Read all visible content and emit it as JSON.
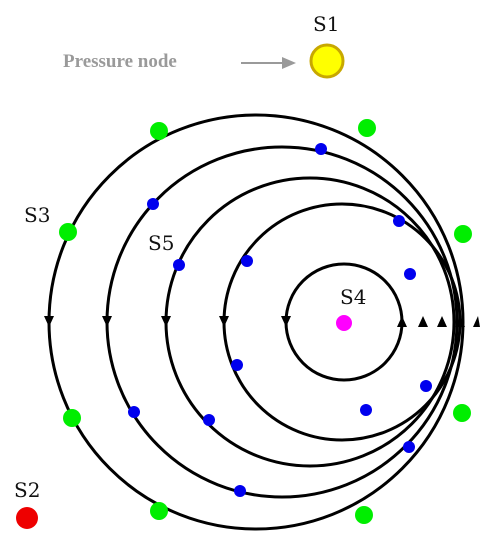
{
  "labels": {
    "pressure_node": "Pressure node",
    "s1": "S1",
    "s2": "S2",
    "s3": "S3",
    "s4": "S4",
    "s5": "S5"
  },
  "colors": {
    "source_s1_fill": "#ffff00",
    "source_s1_stroke": "#c8a800",
    "source_s2": "#ee0000",
    "source_s4": "#ff00ff",
    "node_green": "#00ee00",
    "node_blue": "#0000ee",
    "circle_stroke": "#000000",
    "arrow_gray": "#9a9a9a"
  },
  "icons": {
    "arrow": "right-arrow-icon",
    "direction_marker": "arrowhead-icon"
  }
}
